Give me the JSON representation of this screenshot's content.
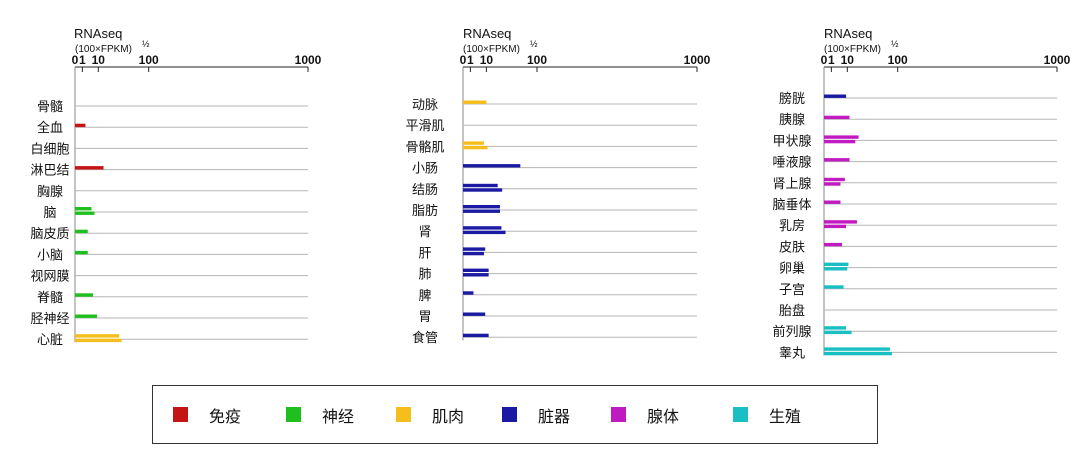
{
  "colors": {
    "免疫": "#c41414",
    "神经": "#1fbf1f",
    "肌肉": "#f5be1c",
    "脏器": "#1a1aa3",
    "腺体": "#c01bc0",
    "生殖": "#19bfc2"
  },
  "legend": [
    {
      "label": "免疫",
      "color": "#c41414"
    },
    {
      "label": "神经",
      "color": "#1fbf1f"
    },
    {
      "label": "肌肉",
      "color": "#f5be1c"
    },
    {
      "label": "脏器",
      "color": "#1a1aa3"
    },
    {
      "label": "腺体",
      "color": "#c01bc0"
    },
    {
      "label": "生殖",
      "color": "#19bfc2"
    }
  ],
  "chart_data": [
    {
      "type": "bar",
      "orientation": "horizontal",
      "axis_title": "RNAseq",
      "axis_unit": "(100×FPKM)",
      "axis_unit_sup": "½",
      "scale": "sqrt",
      "ticks": [
        0,
        1,
        10,
        100,
        1000
      ],
      "xlim": [
        0,
        1000
      ],
      "rows": [
        {
          "label": "骨髓",
          "category": "免疫",
          "values": []
        },
        {
          "label": "全血",
          "category": "免疫",
          "values": [
            2
          ]
        },
        {
          "label": "白细胞",
          "category": "免疫",
          "values": []
        },
        {
          "label": "淋巴结",
          "category": "免疫",
          "values": [
            15
          ]
        },
        {
          "label": "胸腺",
          "category": "免疫",
          "values": []
        },
        {
          "label": "脑",
          "category": "神经",
          "values": [
            5,
            7
          ]
        },
        {
          "label": "脑皮质",
          "category": "神经",
          "values": [
            3
          ]
        },
        {
          "label": "小脑",
          "category": "神经",
          "values": [
            3
          ]
        },
        {
          "label": "视网膜",
          "category": "神经",
          "values": []
        },
        {
          "label": "脊髓",
          "category": "神经",
          "values": [
            6
          ]
        },
        {
          "label": "胫神经",
          "category": "神经",
          "values": [
            9
          ]
        },
        {
          "label": "心脏",
          "category": "肌肉",
          "values": [
            36,
            40
          ]
        }
      ]
    },
    {
      "type": "bar",
      "orientation": "horizontal",
      "axis_title": "RNAseq",
      "axis_unit": "(100×FPKM)",
      "axis_unit_sup": "½",
      "scale": "sqrt",
      "ticks": [
        0,
        1,
        10,
        100,
        1000
      ],
      "xlim": [
        0,
        1000
      ],
      "rows": [
        {
          "label": "动脉",
          "category": "肌肉",
          "values": [
            10
          ]
        },
        {
          "label": "平滑肌",
          "category": "肌肉",
          "values": []
        },
        {
          "label": "骨骼肌",
          "category": "肌肉",
          "values": [
            8,
            11
          ]
        },
        {
          "label": "小肠",
          "category": "脏器",
          "values": [
            60
          ]
        },
        {
          "label": "结肠",
          "category": "脏器",
          "values": [
            22,
            28
          ]
        },
        {
          "label": "脂肪",
          "category": "脏器",
          "values": [
            25,
            25
          ]
        },
        {
          "label": "肾",
          "category": "脏器",
          "values": [
            27,
            33
          ]
        },
        {
          "label": "肝",
          "category": "脏器",
          "values": [
            9,
            8
          ]
        },
        {
          "label": "肺",
          "category": "脏器",
          "values": [
            12,
            12
          ]
        },
        {
          "label": "脾",
          "category": "脏器",
          "values": [
            2
          ]
        },
        {
          "label": "胃",
          "category": "脏器",
          "values": [
            9
          ]
        },
        {
          "label": "食管",
          "category": "脏器",
          "values": [
            12
          ]
        }
      ]
    },
    {
      "type": "bar",
      "orientation": "horizontal",
      "axis_title": "RNAseq",
      "axis_unit": "(100×FPKM)",
      "axis_unit_sup": "½",
      "scale": "sqrt",
      "ticks": [
        0,
        1,
        10,
        100,
        1000
      ],
      "xlim": [
        0,
        1000
      ],
      "rows": [
        {
          "label": "膀胱",
          "category": "脏器",
          "values": [
            9
          ]
        },
        {
          "label": "胰腺",
          "category": "腺体",
          "values": [
            12
          ]
        },
        {
          "label": "甲状腺",
          "category": "腺体",
          "values": [
            22,
            18
          ]
        },
        {
          "label": "唾液腺",
          "category": "腺体",
          "values": [
            12
          ]
        },
        {
          "label": "肾上腺",
          "category": "腺体",
          "values": [
            8,
            5
          ]
        },
        {
          "label": "脑垂体",
          "category": "腺体",
          "values": [
            5
          ]
        },
        {
          "label": "乳房",
          "category": "腺体",
          "values": [
            20,
            9
          ]
        },
        {
          "label": "皮肤",
          "category": "腺体",
          "values": [
            6
          ]
        },
        {
          "label": "卵巢",
          "category": "生殖",
          "values": [
            11,
            10
          ]
        },
        {
          "label": "子宫",
          "category": "生殖",
          "values": [
            7
          ]
        },
        {
          "label": "胎盘",
          "category": "生殖",
          "values": []
        },
        {
          "label": "前列腺",
          "category": "生殖",
          "values": [
            9,
            14
          ]
        },
        {
          "label": "睾丸",
          "category": "生殖",
          "values": [
            80,
            85
          ]
        }
      ]
    }
  ]
}
